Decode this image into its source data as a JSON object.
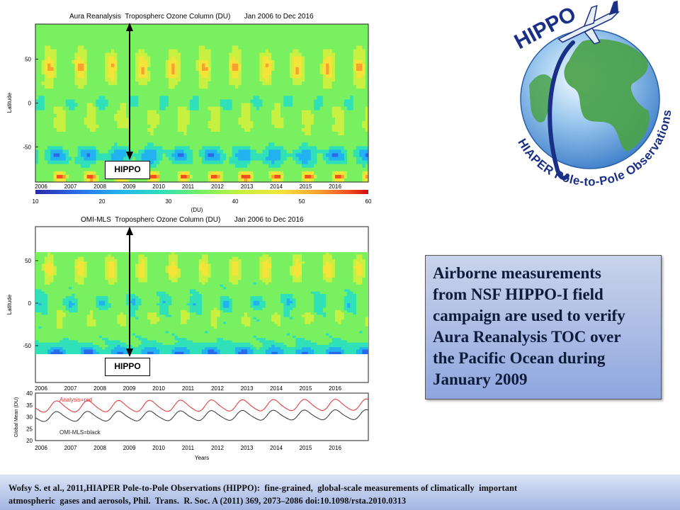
{
  "chart_data": [
    {
      "type": "heatmap",
      "title": "Aura Reanalysis  Tropospherc Ozone Column (DU)       Jan 2006 to Dec 2016",
      "ylabel": "Latitude",
      "y_ticks": [
        "50",
        "0",
        "-50"
      ],
      "x_ticks": [
        "2006",
        "2007",
        "2008",
        "2009",
        "2010",
        "2011",
        "2012",
        "2013",
        "2014",
        "2015",
        "2016"
      ],
      "colorbar_ticks": [
        "10",
        "20",
        "30",
        "40",
        "50",
        "60"
      ],
      "colorbar_label": "(DU)",
      "annotation": "HIPPO",
      "colormap": [
        "#2a2aa8",
        "#2a6ae8",
        "#22b2f0",
        "#30e0b8",
        "#78f060",
        "#c8f040",
        "#f4e43a",
        "#f8a030",
        "#f05020",
        "#d01010"
      ]
    },
    {
      "type": "heatmap",
      "title": "OMI-MLS  Tropospherc Ozone Column (DU)       Jan 2006 to Dec 2016",
      "ylabel": "Latitude",
      "y_ticks": [
        "50",
        "0",
        "-50"
      ],
      "x_ticks": [
        "2006",
        "2007",
        "2008",
        "2009",
        "2010",
        "2011",
        "2012",
        "2013",
        "2014",
        "2015",
        "2016"
      ],
      "annotation": "HIPPO"
    },
    {
      "type": "line",
      "ylabel": "Global Mean (DU)",
      "xlabel": "Years",
      "ylim": [
        20,
        40
      ],
      "y_ticks": [
        "40",
        "35",
        "30",
        "25",
        "20"
      ],
      "x_ticks": [
        "2006",
        "2007",
        "2008",
        "2009",
        "2010",
        "2011",
        "2012",
        "2013",
        "2014",
        "2015",
        "2016"
      ],
      "series": [
        {
          "name": "Analysis=red",
          "color": "#e03030",
          "mean": 34.2,
          "amplitude": 2.3
        },
        {
          "name": "OMI-MLS=black",
          "color": "#333333",
          "mean": 30.0,
          "amplitude": 2.0
        }
      ]
    }
  ],
  "logo": {
    "title": "HIPPO",
    "subtitle": "HIAPER Pole-to-Pole Observations",
    "colors": {
      "ocean": "#6aa8e0",
      "land": "#4aa24a",
      "text": "#1a2f86"
    }
  },
  "callout": {
    "lines": [
      "Airborne measurements",
      "from NSF HIPPO-I field",
      "campaign are used to verify",
      "Aura Reanalysis TOC over",
      "the Pacific Ocean during",
      "January 2009"
    ]
  },
  "citation": {
    "line1": "Wofsy S. et al., 2011,HIAPER Pole-to-Pole Observations (HIPPO):  fine-grained,  global-scale measurements of climatically  important",
    "line2": "atmospheric  gases and aerosols, Phil.  Trans.  R. Soc. A (2011) 369, 2073–2086 doi:10.1098/rsta.2010.0313"
  }
}
